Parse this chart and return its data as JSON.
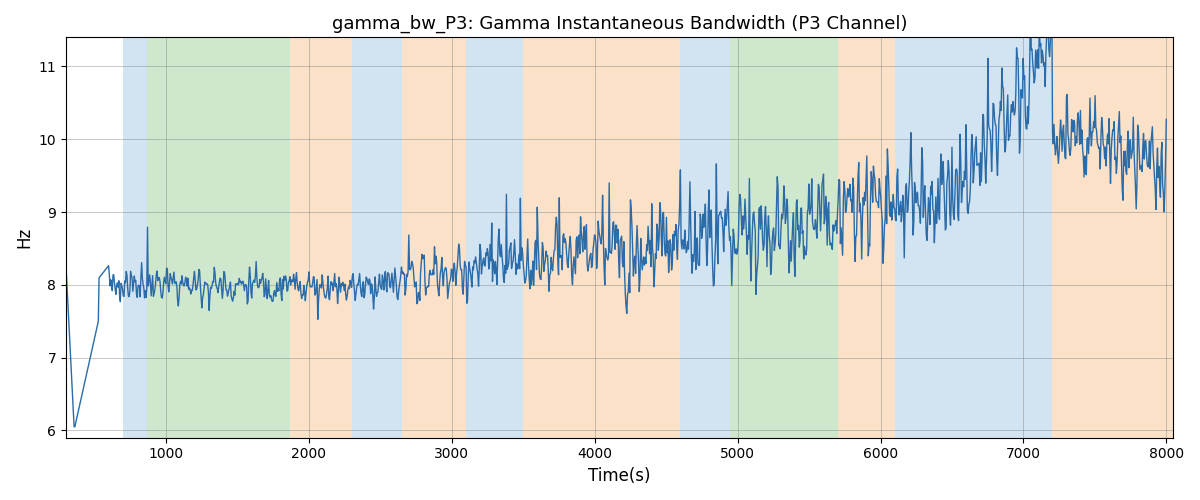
{
  "title": "gamma_bw_P3: Gamma Instantaneous Bandwidth (P3 Channel)",
  "xlabel": "Time(s)",
  "ylabel": "Hz",
  "xlim": [
    300,
    8050
  ],
  "ylim": [
    5.9,
    11.4
  ],
  "yticks": [
    6,
    7,
    8,
    9,
    10,
    11
  ],
  "xticks": [
    1000,
    2000,
    3000,
    4000,
    5000,
    6000,
    7000,
    8000
  ],
  "line_color": "#2b6ca8",
  "line_width": 1.0,
  "bg_bands": [
    {
      "xmin": 700,
      "xmax": 870,
      "color": "#aecde8",
      "alpha": 0.55
    },
    {
      "xmin": 870,
      "xmax": 1870,
      "color": "#a8d5a2",
      "alpha": 0.55
    },
    {
      "xmin": 1870,
      "xmax": 2300,
      "color": "#f7c99b",
      "alpha": 0.55
    },
    {
      "xmin": 2300,
      "xmax": 2650,
      "color": "#aecde8",
      "alpha": 0.55
    },
    {
      "xmin": 2650,
      "xmax": 3100,
      "color": "#f7c99b",
      "alpha": 0.55
    },
    {
      "xmin": 3100,
      "xmax": 3500,
      "color": "#aecde8",
      "alpha": 0.55
    },
    {
      "xmin": 3500,
      "xmax": 4600,
      "color": "#f7c99b",
      "alpha": 0.55
    },
    {
      "xmin": 4600,
      "xmax": 4950,
      "color": "#aecde8",
      "alpha": 0.55
    },
    {
      "xmin": 4950,
      "xmax": 5700,
      "color": "#a8d5a2",
      "alpha": 0.55
    },
    {
      "xmin": 5700,
      "xmax": 6100,
      "color": "#f7c99b",
      "alpha": 0.55
    },
    {
      "xmin": 6100,
      "xmax": 7200,
      "color": "#aecde8",
      "alpha": 0.55
    },
    {
      "xmin": 7200,
      "xmax": 8100,
      "color": "#f7c99b",
      "alpha": 0.55
    }
  ],
  "seed": 123
}
